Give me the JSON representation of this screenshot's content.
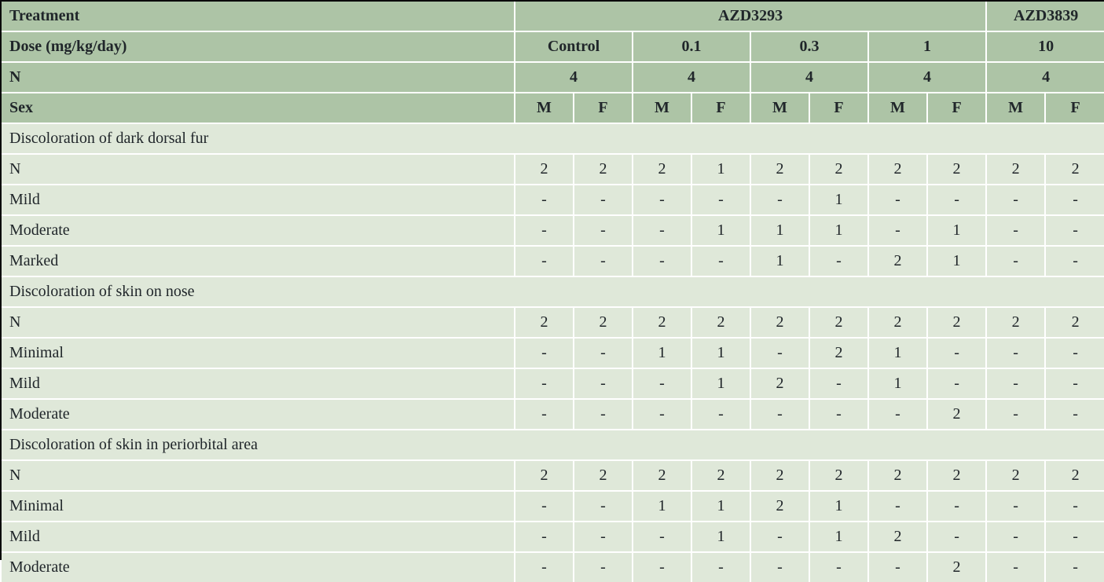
{
  "colors": {
    "header_bg": "#adc4a6",
    "body_bg": "#dfe8d9",
    "gridline": "#ffffff",
    "outer_border": "#0a0a0a",
    "text": "#20262a"
  },
  "table": {
    "header_rows": [
      {
        "label": "Treatment",
        "cells": [
          {
            "text": "AZD3293",
            "span": 8
          },
          {
            "text": "AZD3839",
            "span": 2
          }
        ]
      },
      {
        "label": "Dose (mg/kg/day)",
        "cells": [
          {
            "text": "Control",
            "span": 2
          },
          {
            "text": "0.1",
            "span": 2
          },
          {
            "text": "0.3",
            "span": 2
          },
          {
            "text": "1",
            "span": 2
          },
          {
            "text": "10",
            "span": 2
          }
        ]
      },
      {
        "label": "N",
        "cells": [
          {
            "text": "4",
            "span": 2
          },
          {
            "text": "4",
            "span": 2
          },
          {
            "text": "4",
            "span": 2
          },
          {
            "text": "4",
            "span": 2
          },
          {
            "text": "4",
            "span": 2
          }
        ]
      },
      {
        "label": "Sex",
        "cells": [
          {
            "text": "M",
            "span": 1
          },
          {
            "text": "F",
            "span": 1
          },
          {
            "text": "M",
            "span": 1
          },
          {
            "text": "F",
            "span": 1
          },
          {
            "text": "M",
            "span": 1
          },
          {
            "text": "F",
            "span": 1
          },
          {
            "text": "M",
            "span": 1
          },
          {
            "text": "F",
            "span": 1
          },
          {
            "text": "M",
            "span": 1
          },
          {
            "text": "F",
            "span": 1
          }
        ]
      }
    ],
    "sections": [
      {
        "title": "Discoloration of dark dorsal fur",
        "rows": [
          {
            "label": "N",
            "values": [
              "2",
              "2",
              "2",
              "1",
              "2",
              "2",
              "2",
              "2",
              "2",
              "2"
            ]
          },
          {
            "label": "Mild",
            "values": [
              "-",
              "-",
              "-",
              "-",
              "-",
              "1",
              "-",
              "-",
              "-",
              "-"
            ]
          },
          {
            "label": "Moderate",
            "values": [
              "-",
              "-",
              "-",
              "1",
              "1",
              "1",
              "-",
              "1",
              "-",
              "-"
            ]
          },
          {
            "label": "Marked",
            "values": [
              "-",
              "-",
              "-",
              "-",
              "1",
              "-",
              "2",
              "1",
              "-",
              "-"
            ]
          }
        ]
      },
      {
        "title": "Discoloration of skin on nose",
        "rows": [
          {
            "label": "N",
            "values": [
              "2",
              "2",
              "2",
              "2",
              "2",
              "2",
              "2",
              "2",
              "2",
              "2"
            ]
          },
          {
            "label": "Minimal",
            "values": [
              "-",
              "-",
              "1",
              "1",
              "-",
              "2",
              "1",
              "-",
              "-",
              "-"
            ]
          },
          {
            "label": "Mild",
            "values": [
              "-",
              "-",
              "-",
              "1",
              "2",
              "-",
              "1",
              "-",
              "-",
              "-"
            ]
          },
          {
            "label": "Moderate",
            "values": [
              "-",
              "-",
              "-",
              "-",
              "-",
              "-",
              "-",
              "2",
              "-",
              "-"
            ]
          }
        ]
      },
      {
        "title": "Discoloration of skin in periorbital area",
        "rows": [
          {
            "label": "N",
            "values": [
              "2",
              "2",
              "2",
              "2",
              "2",
              "2",
              "2",
              "2",
              "2",
              "2"
            ]
          },
          {
            "label": "Minimal",
            "values": [
              "-",
              "-",
              "1",
              "1",
              "2",
              "1",
              "-",
              "-",
              "-",
              "-"
            ]
          },
          {
            "label": "Mild",
            "values": [
              "-",
              "-",
              "-",
              "1",
              "-",
              "1",
              "2",
              "-",
              "-",
              "-"
            ]
          },
          {
            "label": "Moderate",
            "values": [
              "-",
              "-",
              "-",
              "-",
              "-",
              "-",
              "-",
              "2",
              "-",
              "-"
            ]
          }
        ]
      }
    ]
  }
}
